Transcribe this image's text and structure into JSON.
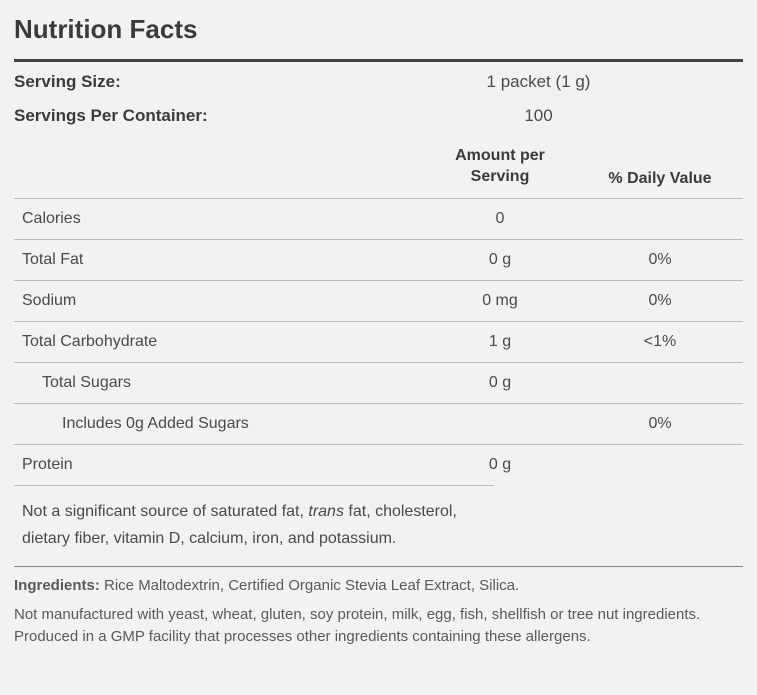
{
  "title": "Nutrition Facts",
  "serving_size": {
    "label": "Serving Size:",
    "value": "1 packet (1 g)"
  },
  "servings_per_container": {
    "label": "Servings Per Container:",
    "value": "100"
  },
  "headers": {
    "amount_line1": "Amount per",
    "amount_line2": "Serving",
    "dv": "% Daily Value"
  },
  "nutrients": [
    {
      "name": "Calories",
      "amount": "0",
      "dv": "",
      "indent": 0
    },
    {
      "name": "Total Fat",
      "amount": "0 g",
      "dv": "0%",
      "indent": 0
    },
    {
      "name": "Sodium",
      "amount": "0 mg",
      "dv": "0%",
      "indent": 0
    },
    {
      "name": "Total Carbohydrate",
      "amount": "1 g",
      "dv": "<1%",
      "indent": 0
    },
    {
      "name": "Total Sugars",
      "amount": "0 g",
      "dv": "",
      "indent": 1
    },
    {
      "name": "Includes 0g Added Sugars",
      "amount": "",
      "dv": "0%",
      "indent": 2
    },
    {
      "name": "Protein",
      "amount": "0 g",
      "dv": "",
      "indent": 0
    }
  ],
  "note_pre": "Not a significant source of saturated fat, ",
  "note_italic": "trans",
  "note_post": " fat, cholesterol, dietary fiber, vitamin D, calcium, iron, and potassium.",
  "ingredients": {
    "label": "Ingredients:  ",
    "text": "Rice Maltodextrin, Certified Organic Stevia Leaf Extract, Silica."
  },
  "allergen_line1": "Not manufactured with yeast, wheat, gluten, soy protein, milk, egg, fish, shellfish or tree nut ingredients.",
  "allergen_line2": "Produced in a GMP facility that processes other ingredients containing these allergens.",
  "colors": {
    "background": "#f2f2f2",
    "text": "#4a4a4a",
    "heading": "#3b3b3b",
    "rule": "#bdbdbd"
  }
}
